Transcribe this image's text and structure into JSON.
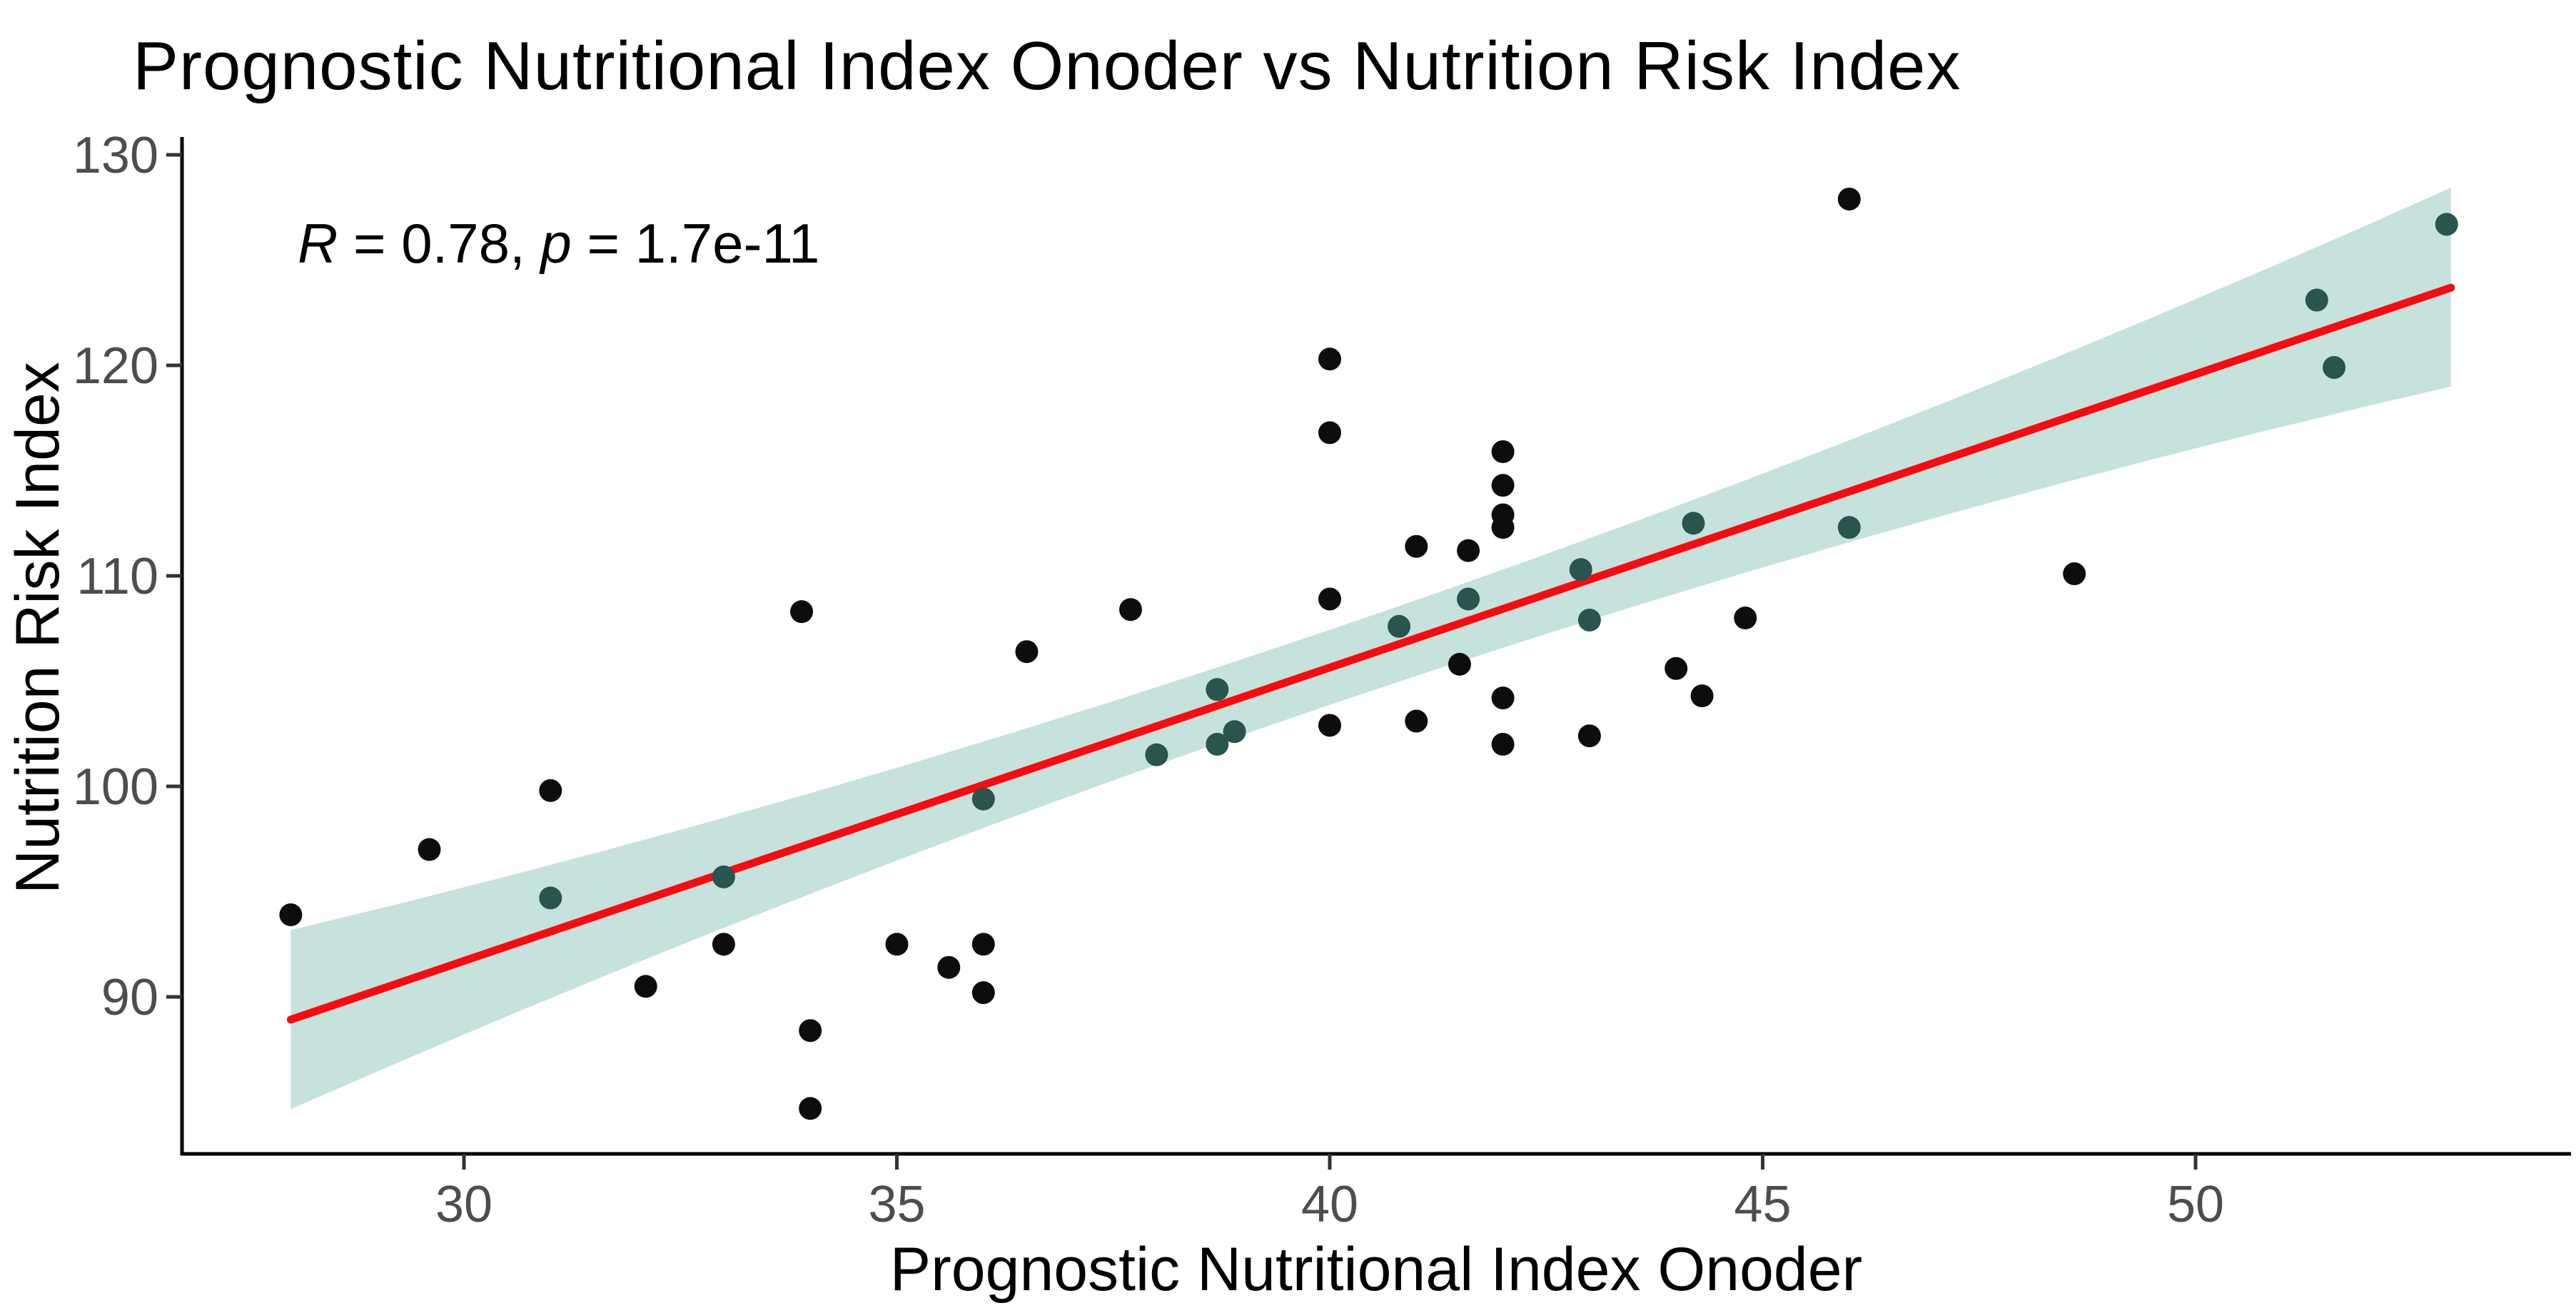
{
  "title": {
    "text": "Prognostic Nutritional Index Onoder vs Nutrition Risk Index"
  },
  "annotation": {
    "r_symbol": "R",
    "r_rest": " = 0.78, ",
    "p_symbol": "p",
    "p_rest": " = 1.7e-11"
  },
  "axes": {
    "x_label": "Prognostic Nutritional Index Onoder",
    "y_label": "Nutrition Risk Index",
    "tick_label_color": "#4d4d4d",
    "axis_line_color": "#000000",
    "tick_mark_color": "#333333"
  },
  "chart_data": {
    "type": "scatter",
    "title": "Prognostic Nutritional Index Onoder vs Nutrition Risk Index",
    "xlabel": "Prognostic Nutritional Index Onoder",
    "ylabel": "Nutrition Risk Index",
    "xlim": [
      26.8,
      54.3
    ],
    "ylim": [
      82.5,
      130.8
    ],
    "x_ticks": [
      30,
      35,
      40,
      45,
      50
    ],
    "y_ticks": [
      90,
      100,
      110,
      120,
      130
    ],
    "grid": "off",
    "legend": "none",
    "correlation": {
      "R": 0.78,
      "p": "1.7e-11"
    },
    "points": [
      [
        28.0,
        93.9
      ],
      [
        29.6,
        97.0
      ],
      [
        31.0,
        99.8
      ],
      [
        31.0,
        94.7
      ],
      [
        32.1,
        90.5
      ],
      [
        33.0,
        95.7
      ],
      [
        33.0,
        92.5
      ],
      [
        33.9,
        108.3
      ],
      [
        34.0,
        88.4
      ],
      [
        34.0,
        84.7
      ],
      [
        35.0,
        92.5
      ],
      [
        35.6,
        91.4
      ],
      [
        36.0,
        92.5
      ],
      [
        36.0,
        90.2
      ],
      [
        36.0,
        99.4
      ],
      [
        36.5,
        106.4
      ],
      [
        37.7,
        108.4
      ],
      [
        38.0,
        101.5
      ],
      [
        38.7,
        104.6
      ],
      [
        38.9,
        102.6
      ],
      [
        38.7,
        102.0
      ],
      [
        40.0,
        120.3
      ],
      [
        40.0,
        116.8
      ],
      [
        40.0,
        108.9
      ],
      [
        40.0,
        102.9
      ],
      [
        40.8,
        107.6
      ],
      [
        41.0,
        111.4
      ],
      [
        41.0,
        103.1
      ],
      [
        41.6,
        111.2
      ],
      [
        41.6,
        108.9
      ],
      [
        41.5,
        105.8
      ],
      [
        42.0,
        115.9
      ],
      [
        42.0,
        114.3
      ],
      [
        42.0,
        112.9
      ],
      [
        42.0,
        112.3
      ],
      [
        42.0,
        104.2
      ],
      [
        42.0,
        102.0
      ],
      [
        42.9,
        110.3
      ],
      [
        43.0,
        107.9
      ],
      [
        43.0,
        102.4
      ],
      [
        44.0,
        105.6
      ],
      [
        44.2,
        112.5
      ],
      [
        44.3,
        104.3
      ],
      [
        44.8,
        108.0
      ],
      [
        46.0,
        112.3
      ],
      [
        46.0,
        127.9
      ],
      [
        48.6,
        110.1
      ],
      [
        51.4,
        123.1
      ],
      [
        51.6,
        119.9
      ],
      [
        52.9,
        126.7
      ]
    ],
    "regression_line": {
      "x_start": 28.0,
      "y_start": 88.92,
      "x_end": 52.95,
      "y_end": 123.69,
      "slope": 1.3946,
      "intercept": 49.87,
      "color": "#f80b10",
      "width": 11
    },
    "ci_band": {
      "color": "#c5e2dd",
      "x_start": 28.0,
      "x_end": 52.95,
      "half_width_at_28": 4.25,
      "half_width_at_41": 1.8,
      "half_width_at_53": 4.7,
      "w0": 1.8,
      "w1": 0.0372,
      "w2": 0.01736,
      "x_center": 41
    },
    "point_style": {
      "radius": 16,
      "color_default": "#0d0d0d",
      "color_on_band": "#2a544e"
    }
  }
}
